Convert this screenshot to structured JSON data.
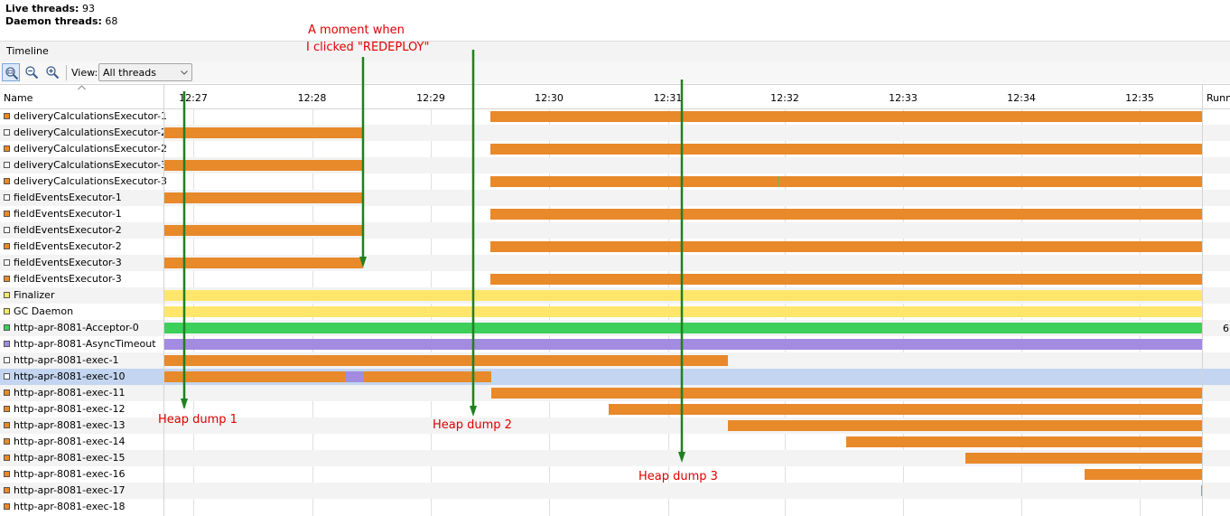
{
  "summary": {
    "live_threads_label": "Live threads:",
    "live_threads_value": "93",
    "daemon_threads_label": "Daemon threads:",
    "daemon_threads_value": "68"
  },
  "timeline_header": {
    "title": "Timeline"
  },
  "toolbar": {
    "zoom_fit_icon": "zoom-fit-icon",
    "zoom_out_icon": "zoom-out-icon",
    "zoom_in_icon": "zoom-in-icon",
    "view_label": "View:",
    "view_value": "All threads"
  },
  "columns": {
    "name": "Name",
    "running": "Runn",
    "ticks": [
      "12:27",
      "12:28",
      "12:29",
      "12:30",
      "12:31",
      "12:32",
      "12:33",
      "12:34",
      "12:35"
    ]
  },
  "colors": {
    "running": "#e8892a",
    "sleeping": "#a28be0",
    "wait": "#ffe66a",
    "park": "#ffe66a",
    "monitor": "#3cd05a",
    "selection": "#c3d5f0",
    "annotation": "#e00000",
    "arrow": "#208020"
  },
  "timeline_range": {
    "start_min": 12.26,
    "end_min": 20.99
  },
  "threads": [
    {
      "name": "deliveryCalculationsExecutor-1",
      "icon": "#e8892a",
      "segments": [
        {
          "from": 15.0,
          "to": 20.99,
          "color": "#e8892a"
        }
      ]
    },
    {
      "name": "deliveryCalculationsExecutor-2",
      "icon": "#ffffff",
      "segments": [
        {
          "from": 12.26,
          "to": 13.93,
          "color": "#e8892a"
        }
      ]
    },
    {
      "name": "deliveryCalculationsExecutor-2",
      "icon": "#e8892a",
      "segments": [
        {
          "from": 15.0,
          "to": 20.99,
          "color": "#e8892a"
        }
      ]
    },
    {
      "name": "deliveryCalculationsExecutor-3",
      "icon": "#ffffff",
      "segments": [
        {
          "from": 12.26,
          "to": 13.93,
          "color": "#e8892a"
        }
      ]
    },
    {
      "name": "deliveryCalculationsExecutor-3",
      "icon": "#e8892a",
      "segments": [
        {
          "from": 15.0,
          "to": 17.42,
          "color": "#e8892a"
        },
        {
          "from": 17.42,
          "to": 17.43,
          "color": "#3cd05a"
        },
        {
          "from": 17.43,
          "to": 20.99,
          "color": "#e8892a"
        }
      ]
    },
    {
      "name": "fieldEventsExecutor-1",
      "icon": "#ffffff",
      "segments": [
        {
          "from": 12.26,
          "to": 13.93,
          "color": "#e8892a"
        }
      ]
    },
    {
      "name": "fieldEventsExecutor-1",
      "icon": "#e8892a",
      "segments": [
        {
          "from": 15.0,
          "to": 20.99,
          "color": "#e8892a"
        }
      ]
    },
    {
      "name": "fieldEventsExecutor-2",
      "icon": "#ffffff",
      "segments": [
        {
          "from": 12.26,
          "to": 13.93,
          "color": "#e8892a"
        }
      ]
    },
    {
      "name": "fieldEventsExecutor-2",
      "icon": "#e8892a",
      "segments": [
        {
          "from": 15.0,
          "to": 20.99,
          "color": "#e8892a"
        }
      ]
    },
    {
      "name": "fieldEventsExecutor-3",
      "icon": "#ffffff",
      "segments": [
        {
          "from": 12.26,
          "to": 13.93,
          "color": "#e8892a"
        }
      ]
    },
    {
      "name": "fieldEventsExecutor-3",
      "icon": "#e8892a",
      "segments": [
        {
          "from": 15.0,
          "to": 20.99,
          "color": "#e8892a"
        }
      ]
    },
    {
      "name": "Finalizer",
      "icon": "#ffe66a",
      "segments": [
        {
          "from": 12.26,
          "to": 20.99,
          "color": "#ffe66a"
        }
      ]
    },
    {
      "name": "GC Daemon",
      "icon": "#ffe66a",
      "segments": [
        {
          "from": 12.26,
          "to": 20.99,
          "color": "#ffe66a"
        }
      ]
    },
    {
      "name": "http-apr-8081-Acceptor-0",
      "icon": "#3cd05a",
      "segments": [
        {
          "from": 12.26,
          "to": 20.99,
          "color": "#3cd05a"
        }
      ]
    },
    {
      "name": "http-apr-8081-AsyncTimeout",
      "icon": "#a28be0",
      "segments": [
        {
          "from": 12.26,
          "to": 20.99,
          "color": "#a28be0"
        }
      ]
    },
    {
      "name": "http-apr-8081-exec-1",
      "icon": "#ffffff",
      "segments": [
        {
          "from": 12.26,
          "to": 17.0,
          "color": "#e8892a"
        }
      ]
    },
    {
      "name": "http-apr-8081-exec-10",
      "icon": "#ffffff",
      "selected": true,
      "segments": [
        {
          "from": 12.26,
          "to": 13.78,
          "color": "#e8892a"
        },
        {
          "from": 13.78,
          "to": 13.94,
          "color": "#a28be0"
        },
        {
          "from": 13.94,
          "to": 15.01,
          "color": "#e8892a"
        }
      ]
    },
    {
      "name": "http-apr-8081-exec-11",
      "icon": "#e8892a",
      "segments": [
        {
          "from": 15.01,
          "to": 20.99,
          "color": "#e8892a"
        }
      ]
    },
    {
      "name": "http-apr-8081-exec-12",
      "icon": "#e8892a",
      "segments": [
        {
          "from": 16.0,
          "to": 20.99,
          "color": "#e8892a"
        }
      ]
    },
    {
      "name": "http-apr-8081-exec-13",
      "icon": "#e8892a",
      "segments": [
        {
          "from": 17.0,
          "to": 20.99,
          "color": "#e8892a"
        }
      ]
    },
    {
      "name": "http-apr-8081-exec-14",
      "icon": "#e8892a",
      "segments": [
        {
          "from": 18.0,
          "to": 20.99,
          "color": "#e8892a"
        }
      ]
    },
    {
      "name": "http-apr-8081-exec-15",
      "icon": "#e8892a",
      "segments": [
        {
          "from": 19.0,
          "to": 20.99,
          "color": "#e8892a"
        }
      ]
    },
    {
      "name": "http-apr-8081-exec-16",
      "icon": "#e8892a",
      "segments": [
        {
          "from": 20.0,
          "to": 20.99,
          "color": "#e8892a"
        }
      ]
    },
    {
      "name": "http-apr-8081-exec-17",
      "icon": "#e8892a",
      "segments": [
        {
          "from": 20.98,
          "to": 20.99,
          "color": "#e8892a"
        }
      ]
    },
    {
      "name": "http-apr-8081-exec-18",
      "icon": "#e8892a",
      "segments": []
    }
  ],
  "running_value": "6",
  "annotations": {
    "redeploy_line1": "A moment when",
    "redeploy_line2": "I clicked \"REDEPLOY\"",
    "heap_dump_1": "Heap dump 1",
    "heap_dump_2": "Heap dump 2",
    "heap_dump_3": "Heap dump 3"
  }
}
